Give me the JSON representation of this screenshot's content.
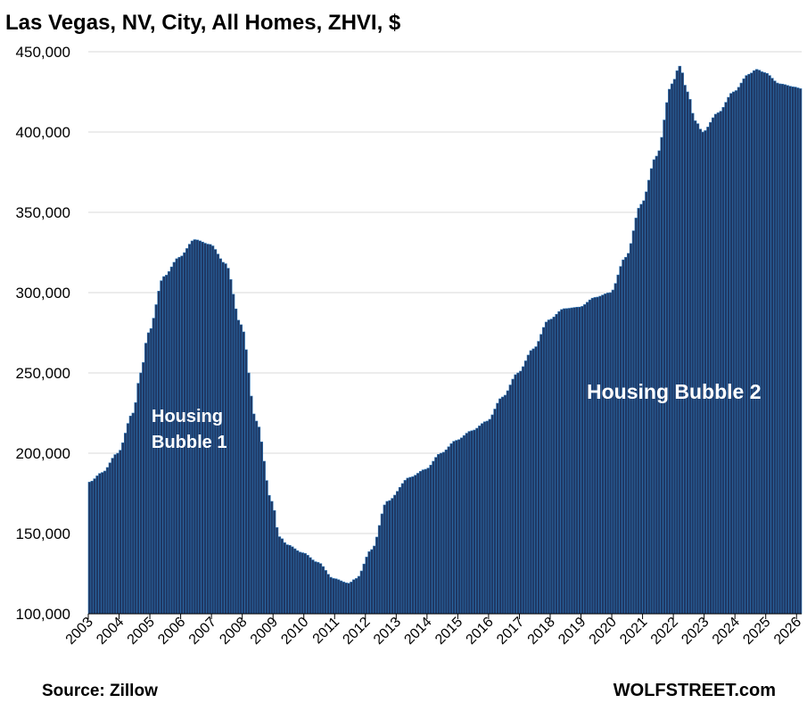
{
  "chart_data": {
    "type": "bar",
    "title": "Las Vegas, NV, City, All Homes, ZHVI, $",
    "ylim": [
      100000,
      450000
    ],
    "y_ticks": [
      "100,000",
      "150,000",
      "200,000",
      "250,000",
      "300,000",
      "350,000",
      "400,000",
      "450,000"
    ],
    "x_ticks": [
      "2003",
      "2004",
      "2005",
      "2006",
      "2007",
      "2008",
      "2009",
      "2010",
      "2011",
      "2012",
      "2013",
      "2014",
      "2015",
      "2016",
      "2017",
      "2018",
      "2019",
      "2020",
      "2021",
      "2022",
      "2023",
      "2024",
      "2025",
      "2026"
    ],
    "grid": true,
    "bar_color": "#1f3864",
    "bar_edge_color": "#2e75b6",
    "annotations": [
      "Housing",
      "Bubble 1",
      "Housing Bubble 2"
    ],
    "source": "Source: Zillow",
    "credit": "WOLFSTREET.com",
    "series": [
      {
        "x_start": "2003-01",
        "frequency": "monthly",
        "anchors": [
          [
            "2003-01",
            182000
          ],
          [
            "2003-06",
            188000
          ],
          [
            "2003-12",
            200000
          ],
          [
            "2004-06",
            225000
          ],
          [
            "2004-09",
            250000
          ],
          [
            "2004-12",
            275000
          ],
          [
            "2005-06",
            310000
          ],
          [
            "2005-12",
            322000
          ],
          [
            "2006-06",
            333000
          ],
          [
            "2006-12",
            330000
          ],
          [
            "2007-06",
            318000
          ],
          [
            "2007-12",
            280000
          ],
          [
            "2008-06",
            220000
          ],
          [
            "2008-12",
            170000
          ],
          [
            "2009-03",
            148000
          ],
          [
            "2009-06",
            143000
          ],
          [
            "2009-12",
            138000
          ],
          [
            "2010-06",
            132000
          ],
          [
            "2010-12",
            122000
          ],
          [
            "2011-06",
            119000
          ],
          [
            "2011-09",
            122000
          ],
          [
            "2012-03",
            140000
          ],
          [
            "2012-09",
            170000
          ],
          [
            "2013-06",
            185000
          ],
          [
            "2013-12",
            190000
          ],
          [
            "2014-06",
            200000
          ],
          [
            "2014-12",
            208000
          ],
          [
            "2015-06",
            214000
          ],
          [
            "2015-12",
            220000
          ],
          [
            "2016-06",
            235000
          ],
          [
            "2016-12",
            250000
          ],
          [
            "2017-06",
            265000
          ],
          [
            "2017-12",
            283000
          ],
          [
            "2018-06",
            290000
          ],
          [
            "2018-12",
            291000
          ],
          [
            "2019-06",
            297000
          ],
          [
            "2019-12",
            300000
          ],
          [
            "2020-06",
            322000
          ],
          [
            "2020-12",
            355000
          ],
          [
            "2021-06",
            385000
          ],
          [
            "2021-12",
            430000
          ],
          [
            "2022-03",
            441000
          ],
          [
            "2022-06",
            425000
          ],
          [
            "2022-09",
            407000
          ],
          [
            "2022-12",
            400000
          ],
          [
            "2023-06",
            412000
          ],
          [
            "2023-12",
            425000
          ],
          [
            "2024-06",
            436000
          ],
          [
            "2024-09",
            439000
          ],
          [
            "2024-12",
            437000
          ],
          [
            "2025-06",
            430000
          ],
          [
            "2025-12",
            428000
          ],
          [
            "2026-02",
            427000
          ]
        ]
      }
    ]
  }
}
